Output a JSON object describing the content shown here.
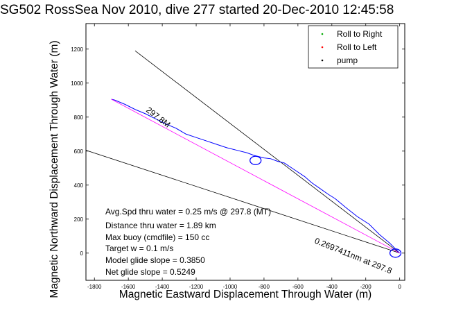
{
  "chart_data": {
    "type": "line",
    "title": "SG502 RossSea Nov 2010, dive 277 started 20-Dec-2010 12:45:58",
    "xlabel": "Magnetic Eastward Displacement Through Water (m)",
    "ylabel": "Magnetic Northward Displacement Through Water (m)",
    "xlim": [
      -1850,
      30
    ],
    "ylim": [
      -160,
      1350
    ],
    "x_ticks": [
      -1800,
      -1600,
      -1400,
      -1200,
      -1000,
      -800,
      -600,
      -400,
      -200,
      0
    ],
    "y_ticks": [
      0,
      200,
      400,
      600,
      800,
      1000,
      1200
    ],
    "grid": false,
    "legend": {
      "placement": "top-right",
      "entries": [
        {
          "label": "Roll to Right",
          "color": "#00aa00",
          "marker": "dot"
        },
        {
          "label": "Roll to Left",
          "color": "#ff0000",
          "marker": "dot"
        },
        {
          "label": "pump",
          "color": "#000000",
          "marker": "dot"
        }
      ]
    },
    "series": [
      {
        "color": "#0000ff",
        "x": [
          0,
          -60,
          -120,
          -180,
          -250,
          -320,
          -380,
          -420,
          -470,
          -520,
          -560,
          -620,
          -680,
          -720,
          -760,
          -800,
          -860,
          -900,
          -960,
          -1020,
          -1080,
          -1140,
          -1200,
          -1260,
          -1320,
          -1380,
          -1440,
          -1500,
          -1560,
          -1620,
          -1680,
          -1700
        ],
        "y": [
          0,
          60,
          110,
          170,
          215,
          270,
          320,
          345,
          380,
          415,
          450,
          490,
          530,
          540,
          555,
          560,
          575,
          590,
          605,
          620,
          640,
          660,
          680,
          700,
          735,
          760,
          790,
          820,
          845,
          875,
          900,
          905
        ]
      },
      {
        "color": "#ff00ff",
        "x": [
          0,
          -1700
        ],
        "y": [
          0,
          905
        ]
      }
    ],
    "lines": [
      {
        "label": "297.8M",
        "color": "#000000",
        "x": [
          0,
          -1560
        ],
        "y": [
          0,
          1190
        ]
      },
      {
        "label": "0.2697411nm at 297.8",
        "color": "#000000",
        "x": [
          0,
          -1850
        ],
        "y": [
          0,
          605
        ]
      }
    ],
    "markers": [
      {
        "shape": "circle",
        "color": "#0000ff",
        "x": -850,
        "y": 545
      },
      {
        "shape": "circle",
        "color": "#0000ff",
        "x": -25,
        "y": 0
      }
    ],
    "annotations": [
      {
        "text": "Avg.Spd thru water = 0.25 m/s @ 297.8 (MT)"
      },
      {
        "text": "Distance thru water = 1.89 km"
      },
      {
        "text": "Max buoy (cmdfile) = 150 cc"
      },
      {
        "text": "Target w = 0.1 m/s"
      },
      {
        "text": "Model glide slope = 0.3850"
      },
      {
        "text": "Net glide slope = 0.5249"
      },
      {
        "text": "297.8M"
      },
      {
        "text": "0.2697411nm at 297.8"
      }
    ]
  }
}
